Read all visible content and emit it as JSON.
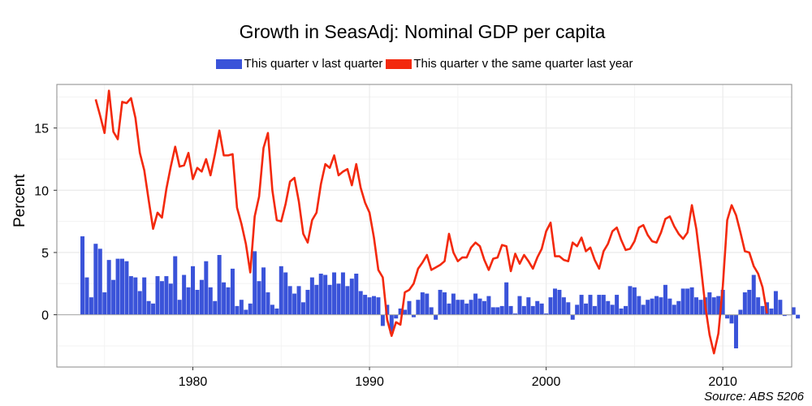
{
  "chart_data": {
    "type": "bar+line",
    "title": "Growth in SeasAdj: Nominal GDP per capita",
    "ylabel": "Percent",
    "xlabel": "",
    "source": "Source: ABS 5206",
    "xlim": [
      1972.3,
      2013.9
    ],
    "ylim": [
      -4.2,
      18.5
    ],
    "x_ticks": [
      1980,
      1990,
      2000,
      2010
    ],
    "y_ticks": [
      0,
      5,
      10,
      15
    ],
    "grid": true,
    "legend_position": "top",
    "colors": {
      "bar": "#3a53d9",
      "line": "#f3290d",
      "panel_border": "#8a8a8a",
      "grid": "#ececec"
    },
    "series": [
      {
        "name": "This quarter v last quarter",
        "kind": "bar",
        "x_start": 1973.75,
        "x_step": 0.25,
        "values": [
          6.3,
          3.0,
          1.4,
          5.7,
          5.3,
          1.8,
          4.4,
          2.8,
          4.5,
          4.5,
          4.3,
          3.1,
          3.0,
          1.9,
          3.0,
          1.1,
          0.9,
          3.1,
          2.7,
          3.1,
          2.5,
          4.7,
          1.2,
          3.2,
          2.2,
          3.9,
          2.0,
          2.8,
          4.3,
          2.2,
          1.1,
          4.8,
          2.6,
          2.2,
          3.7,
          0.7,
          1.2,
          0.4,
          0.9,
          5.1,
          2.7,
          3.8,
          1.8,
          0.8,
          0.5,
          3.9,
          3.4,
          2.3,
          1.7,
          2.3,
          1.0,
          2.0,
          3.0,
          2.4,
          3.3,
          3.2,
          2.4,
          3.4,
          2.5,
          3.4,
          2.3,
          2.9,
          3.3,
          1.9,
          1.6,
          1.4,
          1.5,
          1.4,
          -0.9,
          0.8,
          -1.5,
          -0.3,
          0.5,
          0.4,
          1.1,
          -0.2,
          1.2,
          1.8,
          1.7,
          0.6,
          -0.4,
          2.0,
          1.8,
          0.9,
          1.7,
          1.2,
          1.2,
          0.9,
          1.2,
          1.7,
          1.3,
          1.1,
          1.5,
          0.6,
          0.6,
          0.7,
          2.6,
          0.7,
          0.1,
          1.5,
          0.7,
          1.4,
          0.7,
          1.1,
          0.9,
          0.1,
          1.4,
          2.1,
          2.0,
          1.4,
          1.0,
          -0.4,
          0.8,
          1.6,
          0.9,
          1.6,
          0.7,
          1.6,
          1.6,
          1.1,
          0.8,
          1.6,
          0.5,
          0.7,
          2.3,
          2.2,
          1.5,
          0.8,
          1.2,
          1.3,
          1.5,
          1.4,
          2.4,
          1.3,
          0.8,
          1.1,
          2.1,
          2.1,
          2.2,
          1.4,
          1.2,
          1.4,
          1.8,
          1.4,
          1.5,
          2.0,
          -0.3,
          -0.7,
          -2.7,
          0.4,
          1.8,
          2.0,
          3.2,
          1.4,
          0.7,
          1.0,
          0.5,
          1.9,
          1.2,
          -0.1,
          0.0,
          0.6,
          -0.3
        ]
      },
      {
        "name": "This quarter v the same quarter last year",
        "kind": "line",
        "points": [
          [
            1974.5,
            17.3
          ],
          [
            1974.75,
            16.0
          ],
          [
            1975.0,
            14.6
          ],
          [
            1975.25,
            18.0
          ],
          [
            1975.5,
            14.7
          ],
          [
            1975.75,
            14.1
          ],
          [
            1976.0,
            17.1
          ],
          [
            1976.25,
            17.0
          ],
          [
            1976.5,
            17.4
          ],
          [
            1976.75,
            15.8
          ],
          [
            1977.0,
            13.0
          ],
          [
            1977.25,
            11.6
          ],
          [
            1977.5,
            9.2
          ],
          [
            1977.75,
            6.9
          ],
          [
            1978.0,
            8.2
          ],
          [
            1978.25,
            7.8
          ],
          [
            1978.5,
            10.1
          ],
          [
            1978.75,
            11.9
          ],
          [
            1979.0,
            13.5
          ],
          [
            1979.25,
            11.9
          ],
          [
            1979.5,
            12.0
          ],
          [
            1979.75,
            13.0
          ],
          [
            1980.0,
            10.9
          ],
          [
            1980.25,
            11.8
          ],
          [
            1980.5,
            11.5
          ],
          [
            1980.75,
            12.5
          ],
          [
            1981.0,
            11.2
          ],
          [
            1981.25,
            12.9
          ],
          [
            1981.5,
            14.8
          ],
          [
            1981.75,
            12.8
          ],
          [
            1982.0,
            12.8
          ],
          [
            1982.25,
            12.9
          ],
          [
            1982.5,
            8.6
          ],
          [
            1982.75,
            7.3
          ],
          [
            1983.0,
            5.7
          ],
          [
            1983.25,
            3.4
          ],
          [
            1983.5,
            7.9
          ],
          [
            1983.75,
            9.5
          ],
          [
            1984.0,
            13.4
          ],
          [
            1984.25,
            14.6
          ],
          [
            1984.5,
            10.0
          ],
          [
            1984.75,
            7.6
          ],
          [
            1985.0,
            7.5
          ],
          [
            1985.25,
            8.9
          ],
          [
            1985.5,
            10.7
          ],
          [
            1985.75,
            11.0
          ],
          [
            1986.0,
            9.1
          ],
          [
            1986.25,
            6.5
          ],
          [
            1986.5,
            5.8
          ],
          [
            1986.75,
            7.6
          ],
          [
            1987.0,
            8.2
          ],
          [
            1987.25,
            10.5
          ],
          [
            1987.5,
            12.1
          ],
          [
            1987.75,
            11.8
          ],
          [
            1988.0,
            12.8
          ],
          [
            1988.25,
            11.2
          ],
          [
            1988.5,
            11.5
          ],
          [
            1988.75,
            11.7
          ],
          [
            1989.0,
            10.4
          ],
          [
            1989.25,
            12.1
          ],
          [
            1989.5,
            10.2
          ],
          [
            1989.75,
            9.0
          ],
          [
            1990.0,
            8.2
          ],
          [
            1990.25,
            6.2
          ],
          [
            1990.5,
            3.6
          ],
          [
            1990.75,
            3.0
          ],
          [
            1991.0,
            -0.4
          ],
          [
            1991.25,
            -1.7
          ],
          [
            1991.5,
            -0.6
          ],
          [
            1991.75,
            -0.8
          ],
          [
            1992.0,
            1.8
          ],
          [
            1992.25,
            2.0
          ],
          [
            1992.5,
            2.5
          ],
          [
            1992.75,
            3.7
          ],
          [
            1993.0,
            4.2
          ],
          [
            1993.25,
            4.8
          ],
          [
            1993.5,
            3.6
          ],
          [
            1993.75,
            3.8
          ],
          [
            1994.0,
            4.0
          ],
          [
            1994.25,
            4.3
          ],
          [
            1994.5,
            6.5
          ],
          [
            1994.75,
            5.0
          ],
          [
            1995.0,
            4.3
          ],
          [
            1995.25,
            4.6
          ],
          [
            1995.5,
            4.6
          ],
          [
            1995.75,
            5.4
          ],
          [
            1996.0,
            5.8
          ],
          [
            1996.25,
            5.5
          ],
          [
            1996.5,
            4.4
          ],
          [
            1996.75,
            3.6
          ],
          [
            1997.0,
            4.5
          ],
          [
            1997.25,
            4.6
          ],
          [
            1997.5,
            5.6
          ],
          [
            1997.75,
            5.5
          ],
          [
            1998.0,
            3.5
          ],
          [
            1998.25,
            4.9
          ],
          [
            1998.5,
            4.1
          ],
          [
            1998.75,
            4.8
          ],
          [
            1999.0,
            4.3
          ],
          [
            1999.25,
            3.7
          ],
          [
            1999.5,
            4.6
          ],
          [
            1999.75,
            5.3
          ],
          [
            2000.0,
            6.7
          ],
          [
            2000.25,
            7.4
          ],
          [
            2000.5,
            4.7
          ],
          [
            2000.75,
            4.7
          ],
          [
            2001.0,
            4.4
          ],
          [
            2001.25,
            4.3
          ],
          [
            2001.5,
            5.8
          ],
          [
            2001.75,
            5.5
          ],
          [
            2002.0,
            6.2
          ],
          [
            2002.25,
            5.1
          ],
          [
            2002.5,
            5.4
          ],
          [
            2002.75,
            4.4
          ],
          [
            2003.0,
            3.7
          ],
          [
            2003.25,
            5.1
          ],
          [
            2003.5,
            5.7
          ],
          [
            2003.75,
            6.7
          ],
          [
            2004.0,
            7.0
          ],
          [
            2004.25,
            6.0
          ],
          [
            2004.5,
            5.2
          ],
          [
            2004.75,
            5.3
          ],
          [
            2005.0,
            5.9
          ],
          [
            2005.25,
            7.0
          ],
          [
            2005.5,
            7.2
          ],
          [
            2005.75,
            6.4
          ],
          [
            2006.0,
            5.9
          ],
          [
            2006.25,
            5.8
          ],
          [
            2006.5,
            6.6
          ],
          [
            2006.75,
            7.7
          ],
          [
            2007.0,
            7.9
          ],
          [
            2007.25,
            7.1
          ],
          [
            2007.5,
            6.5
          ],
          [
            2007.75,
            6.1
          ],
          [
            2008.0,
            6.6
          ],
          [
            2008.25,
            8.8
          ],
          [
            2008.5,
            6.9
          ],
          [
            2008.75,
            4.0
          ],
          [
            2009.0,
            0.8
          ],
          [
            2009.25,
            -1.6
          ],
          [
            2009.5,
            -3.1
          ],
          [
            2009.75,
            -1.5
          ],
          [
            2010.0,
            2.3
          ],
          [
            2010.25,
            7.6
          ],
          [
            2010.5,
            8.8
          ],
          [
            2010.75,
            8.0
          ],
          [
            2011.0,
            6.6
          ],
          [
            2011.25,
            5.1
          ],
          [
            2011.5,
            5.0
          ],
          [
            2011.75,
            3.9
          ],
          [
            2012.0,
            3.3
          ],
          [
            2012.25,
            2.2
          ],
          [
            2012.5,
            0.1
          ]
        ]
      }
    ]
  }
}
